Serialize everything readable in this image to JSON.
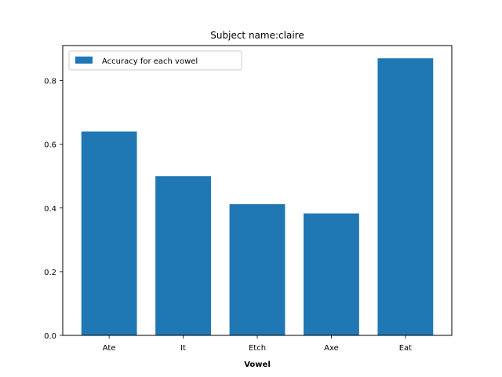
{
  "chart_data": {
    "type": "bar",
    "title": "Subject name:claire",
    "xlabel": "Vowel",
    "ylabel": "",
    "categories": [
      "Ate",
      "It",
      "Etch",
      "Axe",
      "Eat"
    ],
    "series": [
      {
        "name": "Accuracy for each vowel",
        "values": [
          0.64,
          0.5,
          0.412,
          0.383,
          0.87
        ]
      }
    ],
    "ylim": [
      0,
      0.91
    ],
    "yticks": [
      0.0,
      0.2,
      0.4,
      0.6,
      0.8
    ],
    "ytick_labels": [
      "0.0",
      "0.2",
      "0.4",
      "0.6",
      "0.8"
    ],
    "legend_position": "top-left",
    "grid": false,
    "bar_color": "#1f77b4"
  }
}
